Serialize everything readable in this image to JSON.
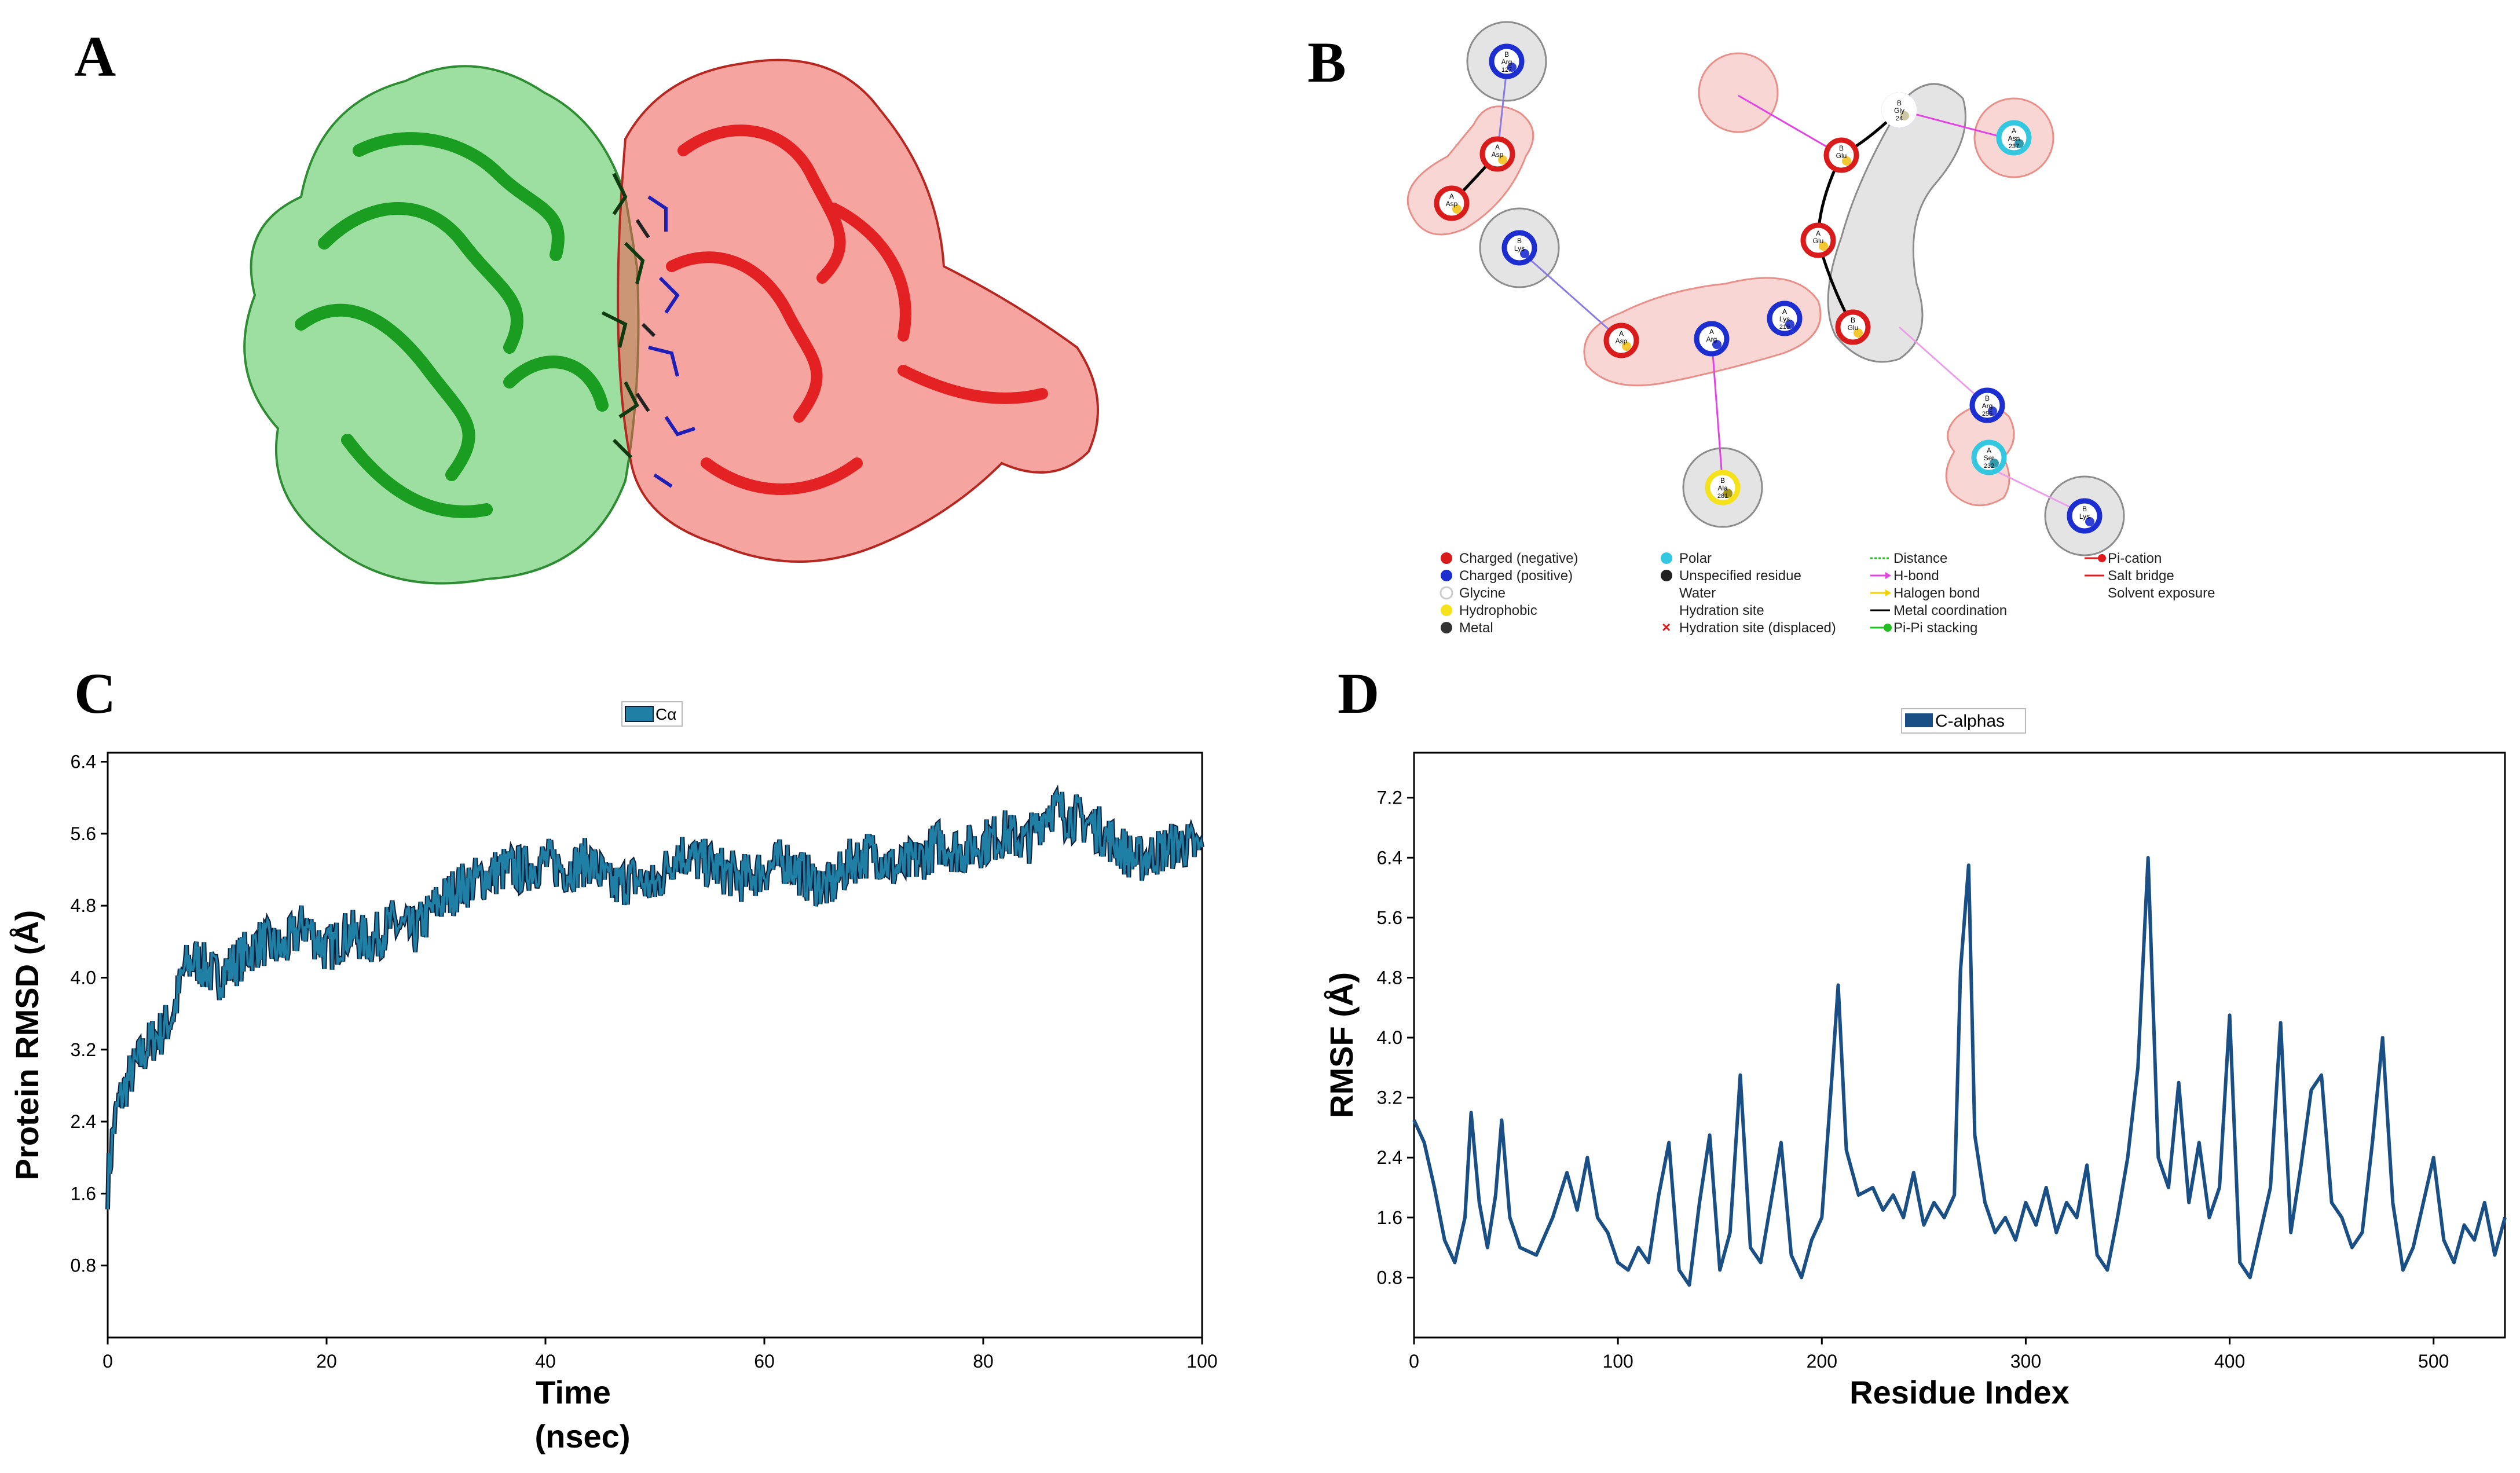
{
  "panels": {
    "a": "A",
    "b": "B",
    "c": "C",
    "d": "D"
  },
  "colors": {
    "green": "#12a21a",
    "red": "#e8251c",
    "rmsd_line": "#1f7fa4",
    "rmsd_edge": "#0b1e3c",
    "rmsf_line": "#1a4f85",
    "interaction_bg": "#f7d6d3",
    "interaction_edge": "#e98f8a",
    "grey_bg": "#e4e4e4",
    "grey_edge": "#8c8c8c"
  },
  "residues": [
    {
      "chain": "B",
      "name": "Arg",
      "num": "127",
      "kind": "positive"
    },
    {
      "chain": "A",
      "name": "Asp",
      "num": "",
      "kind": "negative"
    },
    {
      "chain": "A",
      "name": "Asp",
      "num": "",
      "kind": "negative"
    },
    {
      "chain": "B",
      "name": "Lys",
      "num": "",
      "kind": "positive"
    },
    {
      "chain": "A",
      "name": "Asp",
      "num": "",
      "kind": "negative"
    },
    {
      "chain": "A",
      "name": "Arg",
      "num": "",
      "kind": "positive"
    },
    {
      "chain": "A",
      "name": "Lys",
      "num": "219",
      "kind": "positive"
    },
    {
      "chain": "B",
      "name": "Ala",
      "num": "281",
      "kind": "hydrophobic"
    },
    {
      "chain": "B",
      "name": "Glu",
      "num": "",
      "kind": "negative"
    },
    {
      "chain": "A",
      "name": "Glu",
      "num": "",
      "kind": "negative"
    },
    {
      "chain": "B",
      "name": "Glu",
      "num": "",
      "kind": "negative"
    },
    {
      "chain": "B",
      "name": "Arg",
      "num": "",
      "kind": "positive"
    },
    {
      "chain": "B",
      "name": "Gly",
      "num": "24",
      "kind": "glycine"
    },
    {
      "chain": "A",
      "name": "Asn",
      "num": "237",
      "kind": "polar"
    },
    {
      "chain": "B",
      "name": "Arg",
      "num": "255",
      "kind": "positive"
    },
    {
      "chain": "A",
      "name": "Ser",
      "num": "232",
      "kind": "polar"
    },
    {
      "chain": "B",
      "name": "Lys",
      "num": "",
      "kind": "positive"
    }
  ],
  "legend": {
    "col1": [
      "Charged (negative)",
      "Charged (positive)",
      "Glycine",
      "Hydrophobic",
      "Metal"
    ],
    "col2": [
      "Polar",
      "Unspecified residue",
      "Water",
      "Hydration site",
      "Hydration site (displaced)"
    ],
    "col3": [
      "Distance",
      "H-bond",
      "Halogen bond",
      "Metal coordination",
      "Pi-Pi stacking"
    ],
    "col4": [
      "Pi-cation",
      "Salt bridge",
      "Solvent exposure"
    ]
  },
  "chart_data": [
    {
      "type": "line",
      "legend": "Cα",
      "title": "",
      "xlabel": "Time\n(nsec)",
      "ylabel": "Protein RMSD (Å)",
      "xlim": [
        0,
        100
      ],
      "ylim": [
        0,
        6.5
      ],
      "xticks": [
        0,
        20,
        40,
        60,
        80,
        100
      ],
      "yticks": [
        0.8,
        1.6,
        2.4,
        3.2,
        4.0,
        4.8,
        5.6,
        6.4
      ],
      "x": [
        0,
        0.5,
        1,
        2,
        3,
        4,
        5,
        6,
        7,
        8,
        9,
        10,
        12,
        14,
        16,
        18,
        20,
        22,
        24,
        26,
        28,
        30,
        32,
        34,
        36,
        38,
        40,
        42,
        44,
        46,
        48,
        50,
        52,
        54,
        56,
        58,
        60,
        62,
        64,
        66,
        68,
        70,
        72,
        74,
        76,
        78,
        80,
        82,
        84,
        86,
        88,
        90,
        92,
        94,
        96,
        98,
        100
      ],
      "values": [
        1.7,
        2.3,
        2.6,
        2.9,
        3.1,
        3.3,
        3.4,
        3.6,
        4.1,
        4.2,
        4.1,
        4.0,
        4.2,
        4.4,
        4.3,
        4.6,
        4.3,
        4.5,
        4.4,
        4.6,
        4.5,
        4.8,
        5.0,
        5.1,
        5.2,
        5.2,
        5.3,
        5.2,
        5.3,
        5.0,
        5.1,
        5.0,
        5.4,
        5.3,
        5.2,
        5.1,
        5.2,
        5.3,
        5.1,
        5.0,
        5.3,
        5.4,
        5.2,
        5.3,
        5.5,
        5.4,
        5.5,
        5.6,
        5.5,
        5.9,
        5.8,
        5.7,
        5.5,
        5.3,
        5.4,
        5.5,
        5.4
      ]
    },
    {
      "type": "line",
      "legend": "C-alphas",
      "title": "",
      "xlabel": "Residue Index",
      "ylabel": "RMSF (Å)",
      "xlim": [
        0,
        535
      ],
      "ylim": [
        0,
        7.8
      ],
      "xticks": [
        0,
        100,
        200,
        300,
        400,
        500
      ],
      "yticks": [
        0.8,
        1.6,
        2.4,
        3.2,
        4.0,
        4.8,
        5.6,
        6.4,
        7.2
      ],
      "x": [
        0,
        5,
        10,
        15,
        20,
        25,
        28,
        32,
        36,
        40,
        43,
        47,
        52,
        60,
        68,
        75,
        80,
        85,
        90,
        95,
        100,
        105,
        110,
        115,
        120,
        125,
        130,
        135,
        140,
        145,
        150,
        155,
        160,
        165,
        170,
        175,
        180,
        185,
        190,
        195,
        200,
        205,
        208,
        212,
        218,
        225,
        230,
        235,
        240,
        245,
        250,
        255,
        260,
        265,
        268,
        272,
        275,
        280,
        285,
        290,
        295,
        300,
        305,
        310,
        315,
        320,
        325,
        330,
        335,
        340,
        345,
        350,
        355,
        360,
        365,
        370,
        375,
        380,
        385,
        390,
        395,
        400,
        405,
        410,
        415,
        420,
        425,
        430,
        435,
        440,
        445,
        450,
        455,
        460,
        465,
        470,
        475,
        480,
        485,
        490,
        495,
        500,
        505,
        510,
        515,
        520,
        525,
        530,
        535
      ],
      "values": [
        2.9,
        2.6,
        2.0,
        1.3,
        1.0,
        1.6,
        3.0,
        1.8,
        1.2,
        1.9,
        2.9,
        1.6,
        1.2,
        1.1,
        1.6,
        2.2,
        1.7,
        2.4,
        1.6,
        1.4,
        1.0,
        0.9,
        1.2,
        1.0,
        1.9,
        2.6,
        0.9,
        0.7,
        1.8,
        2.7,
        0.9,
        1.4,
        3.5,
        1.2,
        1.0,
        1.8,
        2.6,
        1.1,
        0.8,
        1.3,
        1.6,
        3.5,
        4.7,
        2.5,
        1.9,
        2.0,
        1.7,
        1.9,
        1.6,
        2.2,
        1.5,
        1.8,
        1.6,
        1.9,
        4.9,
        6.3,
        2.7,
        1.8,
        1.4,
        1.6,
        1.3,
        1.8,
        1.5,
        2.0,
        1.4,
        1.8,
        1.6,
        2.3,
        1.1,
        0.9,
        1.6,
        2.4,
        3.6,
        6.4,
        2.4,
        2.0,
        3.4,
        1.8,
        2.6,
        1.6,
        2.0,
        4.3,
        1.0,
        0.8,
        1.4,
        2.0,
        4.2,
        1.4,
        2.3,
        3.3,
        3.5,
        1.8,
        1.6,
        1.2,
        1.4,
        2.6,
        4.0,
        1.8,
        0.9,
        1.2,
        1.8,
        2.4,
        1.3,
        1.0,
        1.5,
        1.3,
        1.8,
        1.1,
        1.6
      ]
    }
  ]
}
